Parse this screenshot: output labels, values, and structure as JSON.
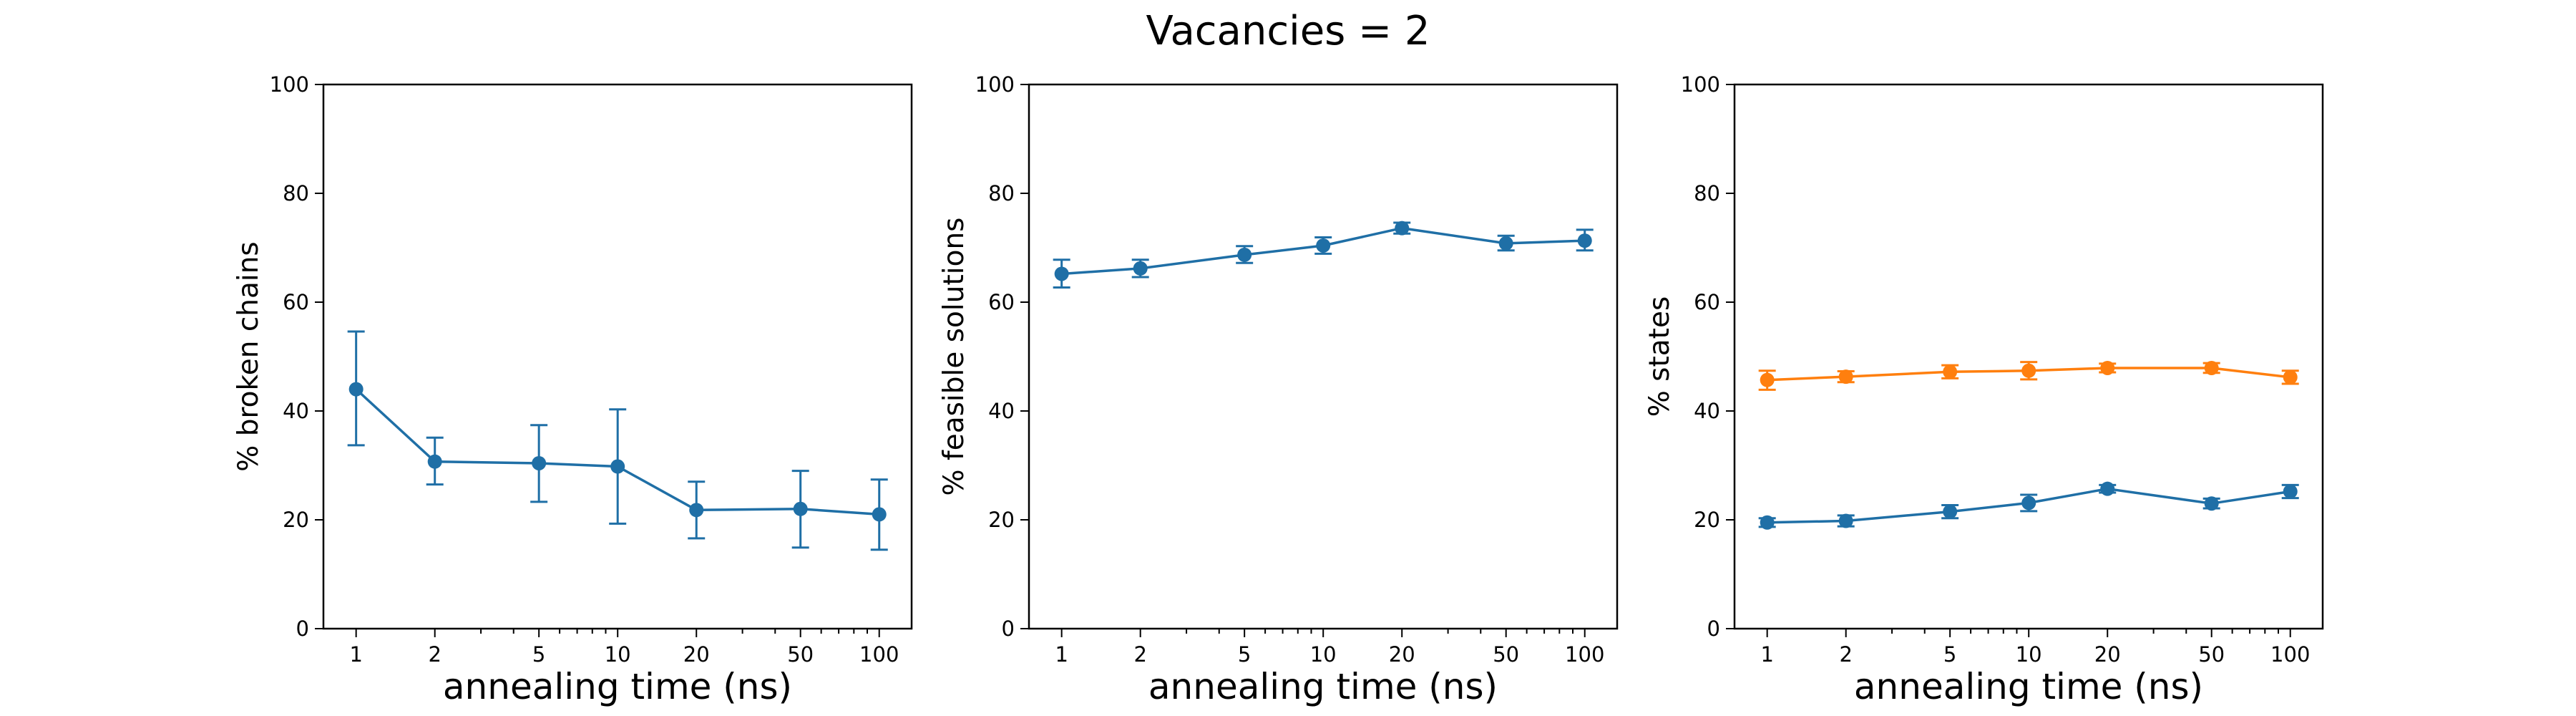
{
  "figure": {
    "title": "Vacancies = 2"
  },
  "colors": {
    "series_blue": "#1f6fa6",
    "series_orange": "#ff7f0e",
    "axes": "#000000",
    "background": "#ffffff"
  },
  "chart_data": [
    {
      "type": "line",
      "title": "",
      "xlabel": "annealing time (ns)",
      "ylabel": "% broken chains",
      "xscale": "log",
      "x": [
        1,
        2,
        5,
        10,
        20,
        50,
        100
      ],
      "xticks": [
        "1",
        "2",
        "5",
        "10",
        "20",
        "50",
        "100"
      ],
      "ylim": [
        0,
        100
      ],
      "yticks": [
        "0",
        "20",
        "40",
        "60",
        "80",
        "100"
      ],
      "grid": false,
      "series": [
        {
          "color": "#1f6fa6",
          "values": [
            44,
            30.7,
            30.4,
            29.8,
            21.8,
            22,
            21
          ],
          "err_low": [
            33.7,
            26.5,
            23.3,
            19.3,
            16.6,
            14.9,
            14.5
          ],
          "err_high": [
            54.6,
            35.1,
            37.4,
            40.3,
            27.0,
            29.0,
            27.4
          ]
        }
      ]
    },
    {
      "type": "line",
      "title": "",
      "xlabel": "annealing time (ns)",
      "ylabel": "% feasible solutions",
      "xscale": "log",
      "x": [
        1,
        2,
        5,
        10,
        20,
        50,
        100
      ],
      "xticks": [
        "1",
        "2",
        "5",
        "10",
        "20",
        "50",
        "100"
      ],
      "ylim": [
        0,
        100
      ],
      "yticks": [
        "0",
        "20",
        "40",
        "60",
        "80",
        "100"
      ],
      "grid": false,
      "series": [
        {
          "color": "#1f6fa6",
          "values": [
            65.2,
            66.2,
            68.7,
            70.4,
            73.6,
            70.8,
            71.3
          ],
          "err_low": [
            62.7,
            64.6,
            67.2,
            68.9,
            72.6,
            69.5,
            69.5
          ],
          "err_high": [
            67.8,
            67.8,
            70.3,
            71.9,
            74.6,
            72.2,
            73.3
          ]
        }
      ]
    },
    {
      "type": "line",
      "title": "",
      "xlabel": "annealing time (ns)",
      "ylabel": "% states",
      "xscale": "log",
      "x": [
        1,
        2,
        5,
        10,
        20,
        50,
        100
      ],
      "xticks": [
        "1",
        "2",
        "5",
        "10",
        "20",
        "50",
        "100"
      ],
      "ylim": [
        0,
        100
      ],
      "yticks": [
        "0",
        "20",
        "40",
        "60",
        "80",
        "100"
      ],
      "grid": false,
      "series": [
        {
          "color": "#ff7f0e",
          "values": [
            45.7,
            46.3,
            47.2,
            47.4,
            47.9,
            47.9,
            46.2
          ],
          "err_low": [
            43.9,
            45.3,
            46.0,
            45.8,
            47.1,
            47.0,
            45.0
          ],
          "err_high": [
            47.4,
            47.3,
            48.4,
            49.0,
            48.7,
            48.8,
            47.4
          ]
        },
        {
          "color": "#1f6fa6",
          "values": [
            19.5,
            19.8,
            21.5,
            23.1,
            25.7,
            23.0,
            25.2
          ],
          "err_low": [
            18.7,
            18.8,
            20.3,
            21.6,
            25.0,
            22.1,
            24.0
          ],
          "err_high": [
            20.3,
            20.8,
            22.7,
            24.6,
            26.4,
            23.9,
            26.4
          ]
        }
      ]
    }
  ]
}
